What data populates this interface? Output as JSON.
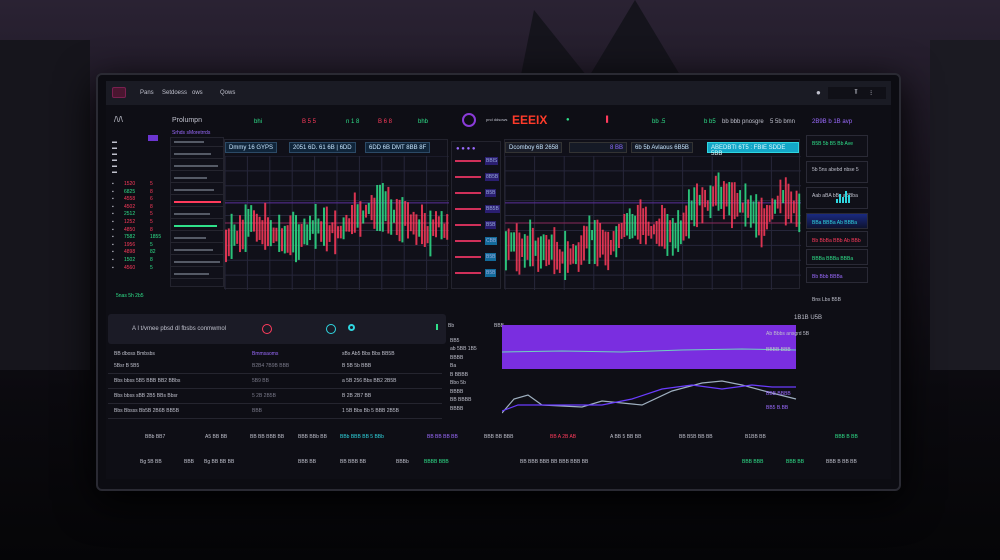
{
  "topbar": {
    "menu": [
      "Pans",
      "Setdoess",
      "ows",
      "Qows"
    ],
    "right_icons": [
      "user-icon",
      "settings-icon",
      "menu-icon"
    ]
  },
  "header": {
    "title": "Prolumpn",
    "subtitle": "Srhds sMoretrrds",
    "tickers": [
      "bhi",
      "B 5 5",
      "n 1 8",
      "B 6 8",
      "bhb"
    ],
    "brand": "EEEIX",
    "brand_sub": "pnd ddsows",
    "right_tickers": [
      "bb .5",
      "b b5",
      "bb bbb pnosgre",
      "5 5b bmn"
    ],
    "right_panel_title": "2B9B b 1B avp"
  },
  "sidebar": {
    "prices": [
      "1520",
      "6825",
      "4558",
      "4502",
      "2512",
      "1252",
      "4850",
      "7582",
      "1956",
      "4898",
      "1502",
      "4560"
    ],
    "changes": [
      "5",
      "8",
      "6",
      "8",
      "5",
      "5",
      "8",
      "1855",
      "5",
      "82",
      "8",
      "5"
    ],
    "footer": "5nas 5h 2b5"
  },
  "chart1": {
    "tabs": [
      "Dmmy 16 GYPS",
      "2051 6D. 61 6B | 6DD",
      "6DD 6B DMT 8BB 8F"
    ]
  },
  "chart2": {
    "tabs": [
      "Dcomboy 6B 2658",
      "8 BB",
      "6b 5b Avlaous 6B5B",
      "ABEDBTI 6T5 : FBIE SDDE 5BB"
    ]
  },
  "order_list": [
    "BBIS",
    "8B5B",
    "B5B",
    "BB5B",
    "B5B",
    "CBB",
    "B5B",
    "B5B"
  ],
  "right_panel": {
    "items": [
      "B5B 5b B5 Bb Ave",
      "5b 5ns abebd nbse 5",
      "Aab aBA bBs aBBba",
      "BBa BBBa Ab BBBa",
      "Bb BbBa BBb Ab BBb",
      "BBBa BBBa BBBa",
      "Bb Bbb BBBa"
    ],
    "footer": "Bns Lbs B5B"
  },
  "ai_panel": {
    "title": "A I t/vmee pbsd dl fbsbs conmwmol"
  },
  "table": {
    "headers": [
      "BB dboss Bmbsbs",
      "Bmmsaoms",
      "sBs Ab5 Bbs Bbs BB5B"
    ],
    "rows": [
      [
        "5Bsr B 5B5",
        "B2B4 7B9B BBB",
        "B 5B 5b BBB"
      ],
      [
        "Bbs bbss 5B5 BBB BB2 BBbs",
        "5B9 BB",
        "a 5B 256 Bbs BB2 2B5B"
      ],
      [
        "Bbs bbss sBB 2B5 BBs Bbsr",
        "5 2B 2B5B",
        "B 2B 2B7 BB"
      ],
      [
        "Bbs Bbsss Bb5B 2B6B BB5B",
        "BBB",
        "1 5B Bbs Bb 5 BBB 2B5B"
      ]
    ]
  },
  "mini_chart": {
    "labels": [
      "Bb",
      "BBB",
      "BB5",
      "ab 5BB 1B5",
      "BBBB",
      "Ba",
      "B BBBB",
      "Bbo 5b",
      "BBBB",
      "BB BBBB",
      "BBBB"
    ],
    "right": [
      "1B1B U5B",
      "Ab Bbbs ansgrd 5B",
      "BBBB BBB",
      "BBB BBBB",
      "BB5 B.BB"
    ]
  },
  "stats": {
    "items": [
      "BBb BB7",
      "A5 BB BB",
      "BB BB BBB BB",
      "BBB BBb BB",
      "BBb BBB BB 5 BBb",
      "BB BB BB BB",
      "BBB BB BBB",
      "BB A 2B AB",
      "A BB 5 BB BB",
      "BB B5B BB BB",
      "B1BB BB",
      "BBB B BB"
    ]
  },
  "footer": {
    "items": [
      "Bg 5B BB",
      "BBB",
      "Bg BB BB BB",
      "BBB BB",
      "BB BBB BB",
      "BBBb",
      "BBBB BBB",
      "BB BBB BBB BB BBB BBB BB",
      "BBB BBB",
      "BBB BB",
      "BBB B BB BB"
    ]
  },
  "colors": {
    "up": "#2fe08a",
    "down": "#ff3b5c",
    "accent": "#9b3bff",
    "cyan": "#2fd6e0",
    "brand": "#ff3b2a"
  }
}
